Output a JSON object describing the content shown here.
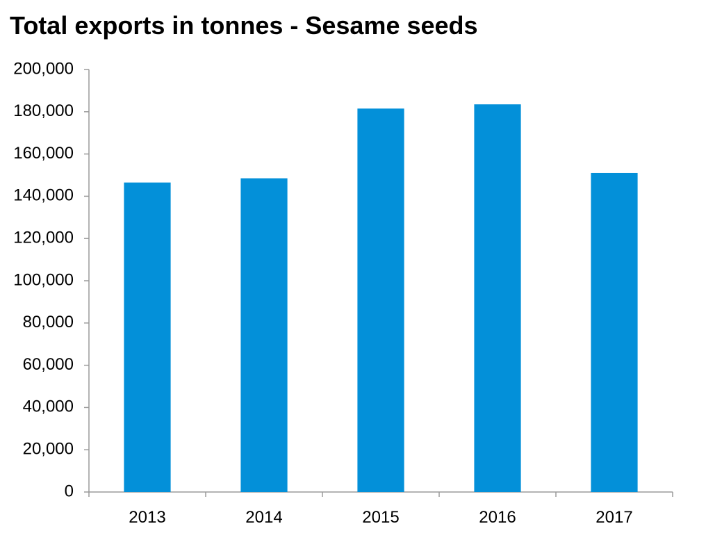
{
  "chart_data": {
    "type": "bar",
    "title": "Total exports in tonnes - Sesame seeds",
    "categories": [
      "2013",
      "2014",
      "2015",
      "2016",
      "2017"
    ],
    "values": [
      146500,
      148500,
      181500,
      183500,
      151000
    ],
    "ylim": [
      0,
      200000
    ],
    "yticks": [
      "0",
      "20,000",
      "40,000",
      "60,000",
      "80,000",
      "100,000",
      "120,000",
      "140,000",
      "160,000",
      "180,000",
      "200,000"
    ],
    "bar_color": "#0390D9",
    "axis_color": "#9A9A9A",
    "grid": false,
    "legend": "none"
  }
}
